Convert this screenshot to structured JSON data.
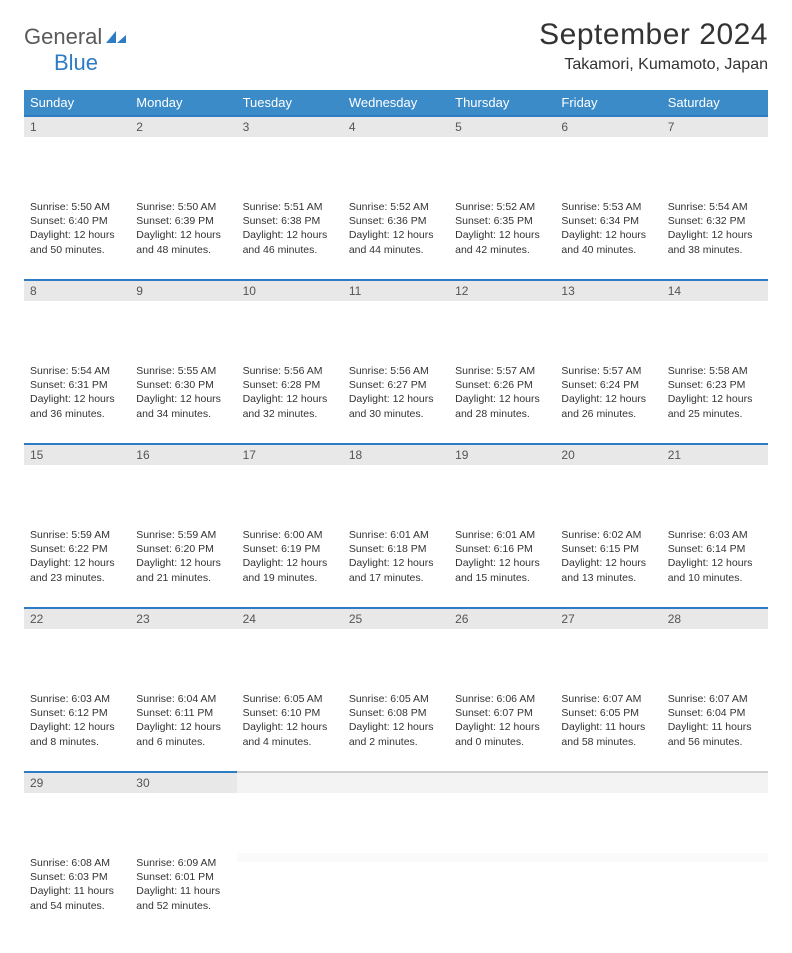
{
  "brand": {
    "part1": "General",
    "part2": "Blue"
  },
  "title": "September 2024",
  "location": "Takamori, Kumamoto, Japan",
  "colors": {
    "header_bg": "#3b8bc9",
    "accent": "#2d7cc4",
    "daynum_bg": "#e8e8e8",
    "text": "#333333"
  },
  "weekdays": [
    "Sunday",
    "Monday",
    "Tuesday",
    "Wednesday",
    "Thursday",
    "Friday",
    "Saturday"
  ],
  "weeks": [
    [
      {
        "n": "1",
        "sr": "5:50 AM",
        "ss": "6:40 PM",
        "dl": "12 hours and 50 minutes."
      },
      {
        "n": "2",
        "sr": "5:50 AM",
        "ss": "6:39 PM",
        "dl": "12 hours and 48 minutes."
      },
      {
        "n": "3",
        "sr": "5:51 AM",
        "ss": "6:38 PM",
        "dl": "12 hours and 46 minutes."
      },
      {
        "n": "4",
        "sr": "5:52 AM",
        "ss": "6:36 PM",
        "dl": "12 hours and 44 minutes."
      },
      {
        "n": "5",
        "sr": "5:52 AM",
        "ss": "6:35 PM",
        "dl": "12 hours and 42 minutes."
      },
      {
        "n": "6",
        "sr": "5:53 AM",
        "ss": "6:34 PM",
        "dl": "12 hours and 40 minutes."
      },
      {
        "n": "7",
        "sr": "5:54 AM",
        "ss": "6:32 PM",
        "dl": "12 hours and 38 minutes."
      }
    ],
    [
      {
        "n": "8",
        "sr": "5:54 AM",
        "ss": "6:31 PM",
        "dl": "12 hours and 36 minutes."
      },
      {
        "n": "9",
        "sr": "5:55 AM",
        "ss": "6:30 PM",
        "dl": "12 hours and 34 minutes."
      },
      {
        "n": "10",
        "sr": "5:56 AM",
        "ss": "6:28 PM",
        "dl": "12 hours and 32 minutes."
      },
      {
        "n": "11",
        "sr": "5:56 AM",
        "ss": "6:27 PM",
        "dl": "12 hours and 30 minutes."
      },
      {
        "n": "12",
        "sr": "5:57 AM",
        "ss": "6:26 PM",
        "dl": "12 hours and 28 minutes."
      },
      {
        "n": "13",
        "sr": "5:57 AM",
        "ss": "6:24 PM",
        "dl": "12 hours and 26 minutes."
      },
      {
        "n": "14",
        "sr": "5:58 AM",
        "ss": "6:23 PM",
        "dl": "12 hours and 25 minutes."
      }
    ],
    [
      {
        "n": "15",
        "sr": "5:59 AM",
        "ss": "6:22 PM",
        "dl": "12 hours and 23 minutes."
      },
      {
        "n": "16",
        "sr": "5:59 AM",
        "ss": "6:20 PM",
        "dl": "12 hours and 21 minutes."
      },
      {
        "n": "17",
        "sr": "6:00 AM",
        "ss": "6:19 PM",
        "dl": "12 hours and 19 minutes."
      },
      {
        "n": "18",
        "sr": "6:01 AM",
        "ss": "6:18 PM",
        "dl": "12 hours and 17 minutes."
      },
      {
        "n": "19",
        "sr": "6:01 AM",
        "ss": "6:16 PM",
        "dl": "12 hours and 15 minutes."
      },
      {
        "n": "20",
        "sr": "6:02 AM",
        "ss": "6:15 PM",
        "dl": "12 hours and 13 minutes."
      },
      {
        "n": "21",
        "sr": "6:03 AM",
        "ss": "6:14 PM",
        "dl": "12 hours and 10 minutes."
      }
    ],
    [
      {
        "n": "22",
        "sr": "6:03 AM",
        "ss": "6:12 PM",
        "dl": "12 hours and 8 minutes."
      },
      {
        "n": "23",
        "sr": "6:04 AM",
        "ss": "6:11 PM",
        "dl": "12 hours and 6 minutes."
      },
      {
        "n": "24",
        "sr": "6:05 AM",
        "ss": "6:10 PM",
        "dl": "12 hours and 4 minutes."
      },
      {
        "n": "25",
        "sr": "6:05 AM",
        "ss": "6:08 PM",
        "dl": "12 hours and 2 minutes."
      },
      {
        "n": "26",
        "sr": "6:06 AM",
        "ss": "6:07 PM",
        "dl": "12 hours and 0 minutes."
      },
      {
        "n": "27",
        "sr": "6:07 AM",
        "ss": "6:05 PM",
        "dl": "11 hours and 58 minutes."
      },
      {
        "n": "28",
        "sr": "6:07 AM",
        "ss": "6:04 PM",
        "dl": "11 hours and 56 minutes."
      }
    ],
    [
      {
        "n": "29",
        "sr": "6:08 AM",
        "ss": "6:03 PM",
        "dl": "11 hours and 54 minutes."
      },
      {
        "n": "30",
        "sr": "6:09 AM",
        "ss": "6:01 PM",
        "dl": "11 hours and 52 minutes."
      },
      null,
      null,
      null,
      null,
      null
    ]
  ],
  "labels": {
    "sunrise": "Sunrise:",
    "sunset": "Sunset:",
    "daylight": "Daylight:"
  }
}
